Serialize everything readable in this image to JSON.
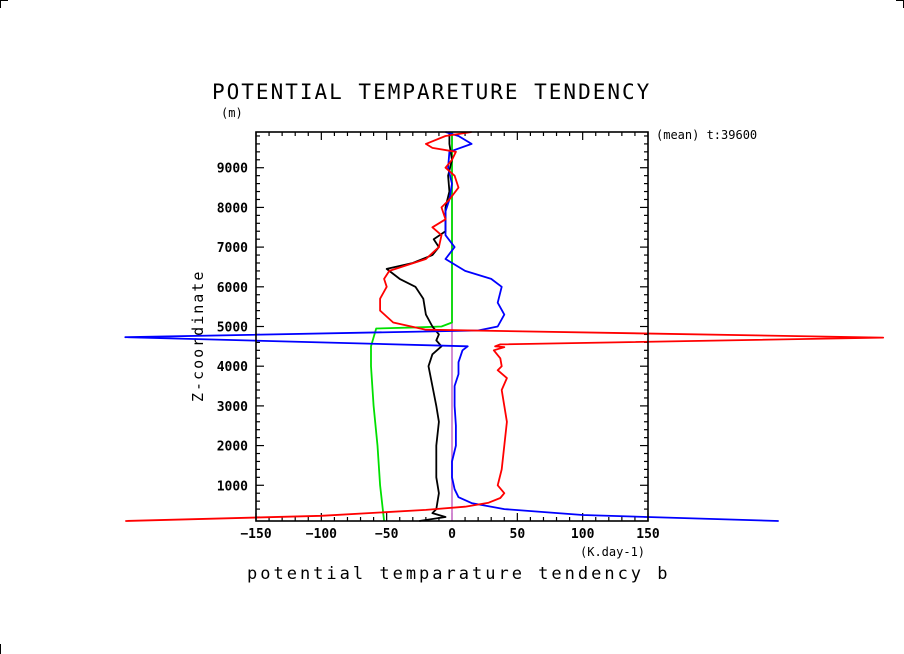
{
  "chart_data": {
    "type": "line",
    "title": "POTENTIAL TEMPARETURE TENDENCY",
    "xlabel": "potential temparature tendency b",
    "xunit": "(K.day-1)",
    "ylabel": "Z-coordinate",
    "yunit": "(m)",
    "annotation": "(mean) t:39600",
    "xlim": [
      -150,
      150
    ],
    "ylim": [
      100,
      9900
    ],
    "x_ticks": [
      -150,
      -100,
      -50,
      0,
      50,
      100,
      150
    ],
    "x_tick_labels": [
      "−150",
      "−100",
      "−50",
      "0",
      "50",
      "100",
      "150"
    ],
    "y_ticks": [
      1000,
      2000,
      3000,
      4000,
      5000,
      6000,
      7000,
      8000,
      9000
    ],
    "y_tick_labels": [
      "1000",
      "2000",
      "3000",
      "4000",
      "5000",
      "6000",
      "7000",
      "8000",
      "9000"
    ],
    "grid": false,
    "legend": "none",
    "series": [
      {
        "color": "#ff0000",
        "points": [
          [
            -250,
            100
          ],
          [
            -100,
            230
          ],
          [
            -20,
            380
          ],
          [
            10,
            460
          ],
          [
            28,
            560
          ],
          [
            37,
            680
          ],
          [
            40,
            800
          ],
          [
            35,
            1000
          ],
          [
            38,
            1400
          ],
          [
            40,
            2000
          ],
          [
            42,
            2600
          ],
          [
            40,
            3000
          ],
          [
            38,
            3400
          ],
          [
            42,
            3700
          ],
          [
            35,
            3900
          ],
          [
            38,
            4000
          ],
          [
            37,
            4200
          ],
          [
            32,
            4400
          ],
          [
            40,
            4480
          ],
          [
            33,
            4500
          ],
          [
            37,
            4550
          ],
          [
            330,
            4720
          ],
          [
            -20,
            4920
          ],
          [
            -45,
            5100
          ],
          [
            -55,
            5400
          ],
          [
            -55,
            5700
          ],
          [
            -50,
            6000
          ],
          [
            -52,
            6200
          ],
          [
            -48,
            6400
          ],
          [
            -20,
            6700
          ],
          [
            -10,
            7000
          ],
          [
            -8,
            7300
          ],
          [
            -15,
            7500
          ],
          [
            -5,
            7700
          ],
          [
            -8,
            8000
          ],
          [
            -2,
            8200
          ],
          [
            5,
            8500
          ],
          [
            2,
            8800
          ],
          [
            -5,
            9000
          ],
          [
            0,
            9200
          ],
          [
            3,
            9400
          ],
          [
            -15,
            9500
          ],
          [
            -20,
            9600
          ],
          [
            -5,
            9800
          ],
          [
            15,
            9900
          ]
        ]
      },
      {
        "color": "#0000ff",
        "points": [
          [
            250,
            100
          ],
          [
            100,
            250
          ],
          [
            40,
            400
          ],
          [
            15,
            550
          ],
          [
            5,
            700
          ],
          [
            2,
            900
          ],
          [
            0,
            1200
          ],
          [
            0,
            1600
          ],
          [
            3,
            2000
          ],
          [
            3,
            2500
          ],
          [
            2,
            3000
          ],
          [
            2,
            3500
          ],
          [
            5,
            3800
          ],
          [
            5,
            4100
          ],
          [
            8,
            4400
          ],
          [
            12,
            4500
          ],
          [
            -250,
            4730
          ],
          [
            20,
            4900
          ],
          [
            35,
            5000
          ],
          [
            40,
            5300
          ],
          [
            35,
            5600
          ],
          [
            38,
            6000
          ],
          [
            30,
            6200
          ],
          [
            10,
            6400
          ],
          [
            -5,
            6700
          ],
          [
            2,
            7000
          ],
          [
            -5,
            7300
          ],
          [
            -5,
            7600
          ],
          [
            -5,
            7900
          ],
          [
            -2,
            8200
          ],
          [
            0,
            8600
          ],
          [
            -3,
            9000
          ],
          [
            -2,
            9400
          ],
          [
            15,
            9600
          ],
          [
            5,
            9800
          ],
          [
            -5,
            9900
          ]
        ]
      },
      {
        "color": "#000000",
        "points": [
          [
            -25,
            100
          ],
          [
            -5,
            200
          ],
          [
            -15,
            300
          ],
          [
            -12,
            400
          ],
          [
            -10,
            800
          ],
          [
            -12,
            1200
          ],
          [
            -12,
            2000
          ],
          [
            -10,
            2600
          ],
          [
            -12,
            3000
          ],
          [
            -15,
            3500
          ],
          [
            -18,
            4000
          ],
          [
            -15,
            4300
          ],
          [
            -8,
            4500
          ],
          [
            -12,
            4650
          ],
          [
            -10,
            4800
          ],
          [
            -15,
            5000
          ],
          [
            -20,
            5300
          ],
          [
            -22,
            5700
          ],
          [
            -28,
            6000
          ],
          [
            -40,
            6200
          ],
          [
            -50,
            6450
          ],
          [
            -30,
            6600
          ],
          [
            -15,
            6800
          ],
          [
            -10,
            7000
          ],
          [
            -14,
            7200
          ],
          [
            -5,
            7400
          ],
          [
            -5,
            7700
          ],
          [
            -5,
            8000
          ],
          [
            -2,
            8400
          ],
          [
            -3,
            8800
          ],
          [
            0,
            9200
          ],
          [
            -2,
            9600
          ],
          [
            -2,
            9900
          ]
        ]
      },
      {
        "color": "#00e000",
        "points": [
          [
            -52,
            100
          ],
          [
            -55,
            1000
          ],
          [
            -57,
            2000
          ],
          [
            -60,
            3000
          ],
          [
            -62,
            4000
          ],
          [
            -62,
            4500
          ],
          [
            -58,
            4950
          ],
          [
            -25,
            4980
          ],
          [
            -8,
            5000
          ],
          [
            0,
            5100
          ],
          [
            0,
            6000
          ],
          [
            0,
            6500
          ],
          [
            0,
            7000
          ],
          [
            0,
            8000
          ],
          [
            0,
            9000
          ],
          [
            0,
            9900
          ]
        ]
      },
      {
        "color": "#d080d0",
        "points": [
          [
            0,
            100
          ],
          [
            0,
            1000
          ],
          [
            0,
            2000
          ],
          [
            0,
            3000
          ],
          [
            0,
            4000
          ],
          [
            0,
            5000
          ],
          [
            0,
            6000
          ],
          [
            0,
            7000
          ],
          [
            0,
            8000
          ],
          [
            0,
            9000
          ],
          [
            0,
            9900
          ]
        ]
      }
    ]
  }
}
